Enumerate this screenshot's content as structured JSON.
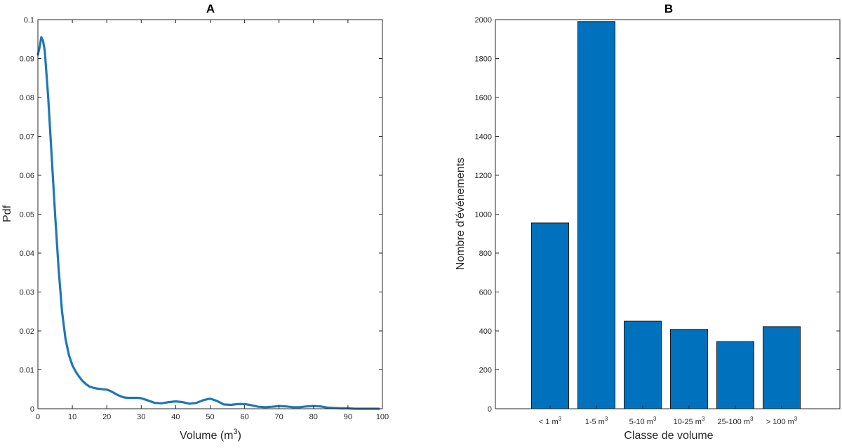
{
  "chart_data": [
    {
      "id": "A",
      "type": "line",
      "title": "A",
      "xlabel": "Volume (m",
      "xlabel_sup": "3",
      "xlabel_tail": ")",
      "ylabel": "Pdf",
      "xlim": [
        0,
        100
      ],
      "ylim": [
        0,
        0.1
      ],
      "xticks": [
        "0",
        "10",
        "20",
        "30",
        "40",
        "50",
        "60",
        "70",
        "80",
        "90",
        "100"
      ],
      "yticks": [
        "0",
        "0.01",
        "0.02",
        "0.03",
        "0.04",
        "0.05",
        "0.06",
        "0.07",
        "0.08",
        "0.09",
        "0.1"
      ],
      "grid": false,
      "color": "#1f77b4",
      "series": [
        {
          "x": [
            0,
            0.5,
            1,
            1.5,
            2,
            3,
            4,
            5,
            6,
            7,
            8,
            9,
            10,
            11,
            12,
            13,
            14,
            15,
            16,
            17,
            18,
            19,
            20,
            21,
            22,
            23,
            24,
            25,
            26,
            27,
            28,
            29,
            30,
            32,
            34,
            36,
            38,
            40,
            42,
            44,
            46,
            48,
            50,
            52,
            54,
            56,
            58,
            60,
            62,
            64,
            66,
            68,
            70,
            72,
            74,
            76,
            78,
            80,
            82,
            84,
            86,
            88,
            90,
            92,
            94,
            96,
            98,
            99
          ],
          "y": [
            0.091,
            0.093,
            0.0955,
            0.0945,
            0.092,
            0.08,
            0.065,
            0.05,
            0.036,
            0.025,
            0.018,
            0.0138,
            0.0112,
            0.0095,
            0.0082,
            0.0071,
            0.0063,
            0.0057,
            0.0054,
            0.0052,
            0.0051,
            0.005,
            0.0049,
            0.0046,
            0.0041,
            0.0036,
            0.0032,
            0.0029,
            0.0028,
            0.0028,
            0.0028,
            0.0028,
            0.0027,
            0.0021,
            0.0015,
            0.0014,
            0.0017,
            0.0019,
            0.0017,
            0.0013,
            0.0015,
            0.0022,
            0.0026,
            0.002,
            0.0011,
            0.001,
            0.0012,
            0.0012,
            0.0009,
            0.0005,
            0.0004,
            0.0005,
            0.0007,
            0.0006,
            0.0004,
            0.0004,
            0.0006,
            0.0007,
            0.0006,
            0.0003,
            0.0002,
            0.0001,
            0.0001,
            0.0,
            0.0,
            0.0,
            0.0,
            0.0
          ]
        }
      ]
    },
    {
      "id": "B",
      "type": "bar",
      "title": "B",
      "xlabel": "Classe de volume",
      "ylabel": "Nombre d'événements",
      "ylim": [
        0,
        2000
      ],
      "yticks": [
        "0",
        "200",
        "400",
        "600",
        "800",
        "1000",
        "1200",
        "1400",
        "1600",
        "1800",
        "2000"
      ],
      "grid": false,
      "color": "#0072bd",
      "categories": [
        {
          "label": "< 1 m",
          "sup": "3"
        },
        {
          "label": "1-5 m",
          "sup": "3"
        },
        {
          "label": "5-10 m",
          "sup": "3"
        },
        {
          "label": "10-25 m",
          "sup": "3"
        },
        {
          "label": "25-100 m",
          "sup": "3"
        },
        {
          "label": "> 100 m",
          "sup": "3"
        }
      ],
      "values": [
        955,
        1990,
        450,
        408,
        345,
        422
      ]
    }
  ]
}
